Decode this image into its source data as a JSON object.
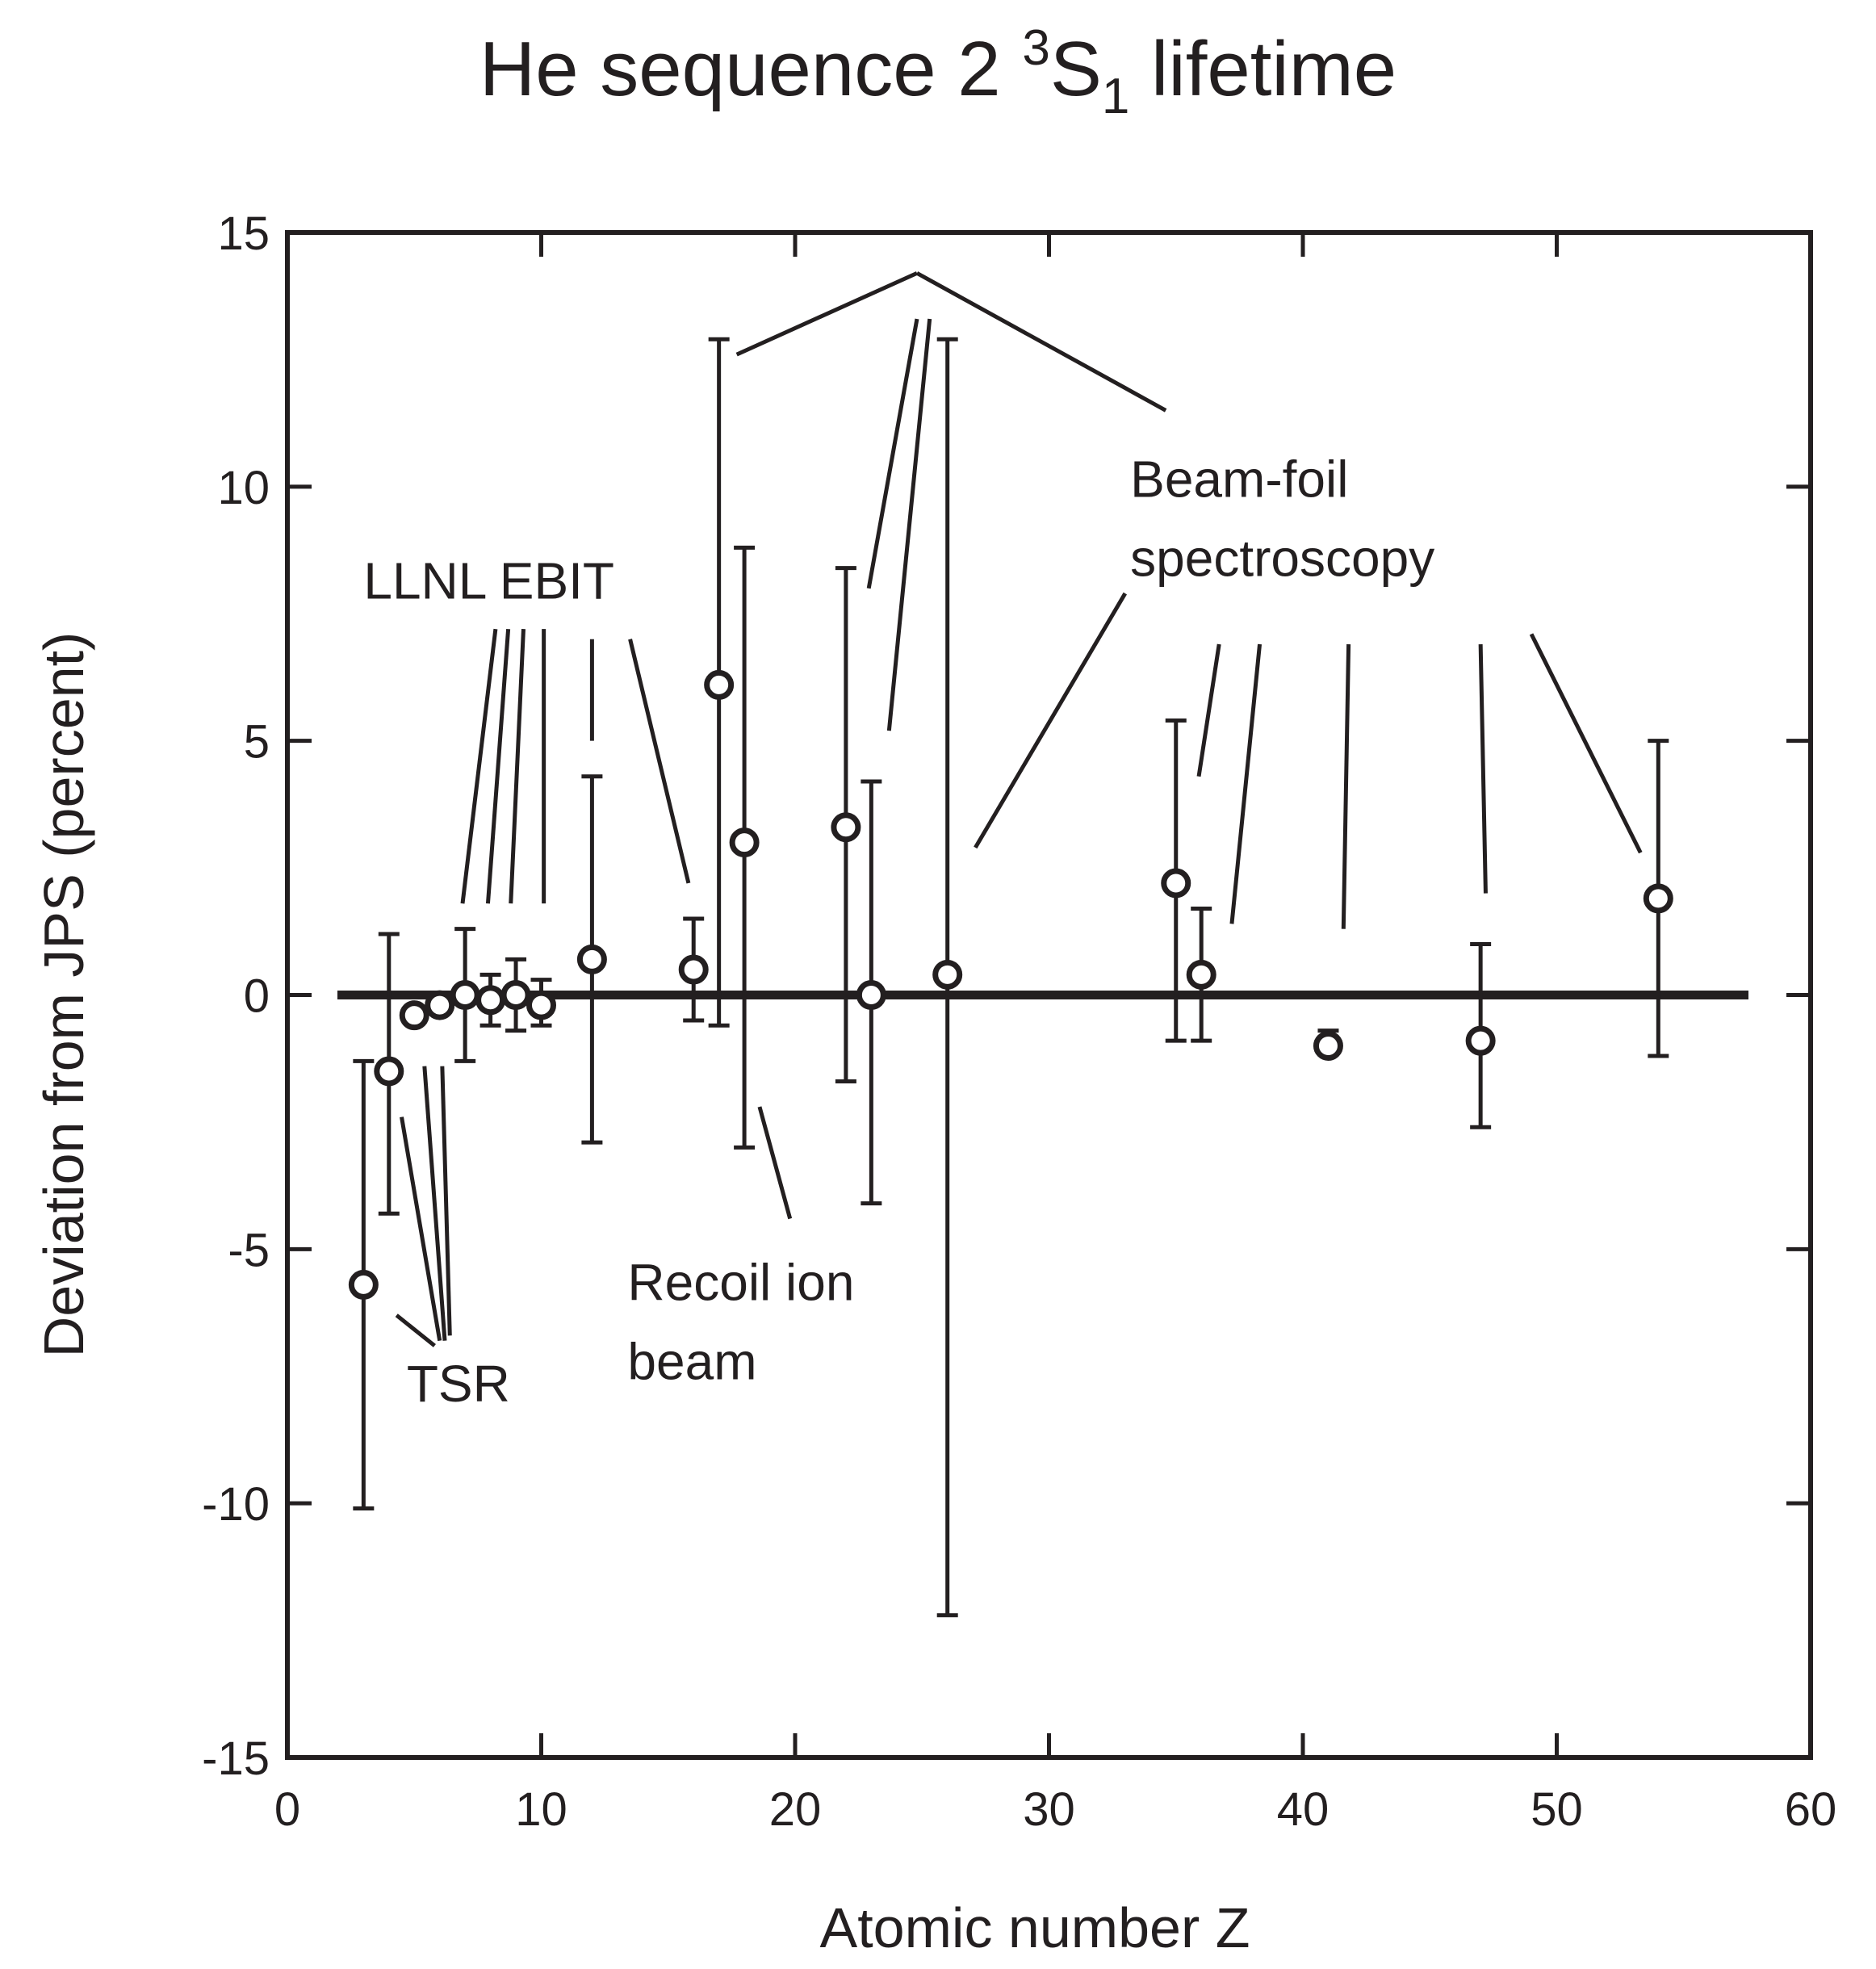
{
  "chart_data": {
    "type": "scatter",
    "title": {
      "prefix": "He sequence 2 ",
      "superscript": "3",
      "symbol": "S",
      "subscript": "1",
      "suffix": " lifetime"
    },
    "xlabel": "Atomic number Z",
    "ylabel": "Deviation from JPS (percent)",
    "xlim": [
      0,
      60
    ],
    "ylim": [
      -15,
      15
    ],
    "xticks": [
      0,
      10,
      20,
      30,
      40,
      50,
      60
    ],
    "yticks": [
      -15,
      -10,
      -5,
      0,
      5,
      10,
      15
    ],
    "reference_line_y": 0,
    "series": [
      {
        "name": "measurements",
        "marker": "open-circle",
        "points": [
          {
            "z": 3,
            "value": -5.7,
            "err_low": -10.1,
            "err_high": -1.3
          },
          {
            "z": 4,
            "value": -1.5,
            "err_low": -4.3,
            "err_high": 1.2
          },
          {
            "z": 5,
            "value": -0.4
          },
          {
            "z": 6,
            "value": -0.2
          },
          {
            "z": 7,
            "value": 0.0,
            "err_low": -1.3,
            "err_high": 1.3
          },
          {
            "z": 8,
            "value": -0.1,
            "err_low": -0.6,
            "err_high": 0.4
          },
          {
            "z": 9,
            "value": 0.0,
            "err_low": -0.7,
            "err_high": 0.7
          },
          {
            "z": 10,
            "value": -0.2,
            "err_low": -0.6,
            "err_high": 0.3
          },
          {
            "z": 12,
            "value": 0.7,
            "err_low": -2.9,
            "err_high": 4.3
          },
          {
            "z": 16,
            "value": 0.5,
            "err_low": -0.5,
            "err_high": 1.5
          },
          {
            "z": 17,
            "value": 6.1,
            "err_low": -0.6,
            "err_high": 12.9
          },
          {
            "z": 18,
            "value": 3.0,
            "err_low": -3.0,
            "err_high": 8.8
          },
          {
            "z": 22,
            "value": 3.3,
            "err_low": -1.7,
            "err_high": 8.4
          },
          {
            "z": 23,
            "value": 0.0,
            "err_low": -4.1,
            "err_high": 4.2
          },
          {
            "z": 26,
            "value": 0.4,
            "err_low": -12.2,
            "err_high": 12.9
          },
          {
            "z": 35,
            "value": 2.2,
            "err_low": -0.9,
            "err_high": 5.4
          },
          {
            "z": 36,
            "value": 0.4,
            "err_low": -0.9,
            "err_high": 1.7
          },
          {
            "z": 41,
            "value": -1.0,
            "err_low": -1.1,
            "err_high": -0.7
          },
          {
            "z": 47,
            "value": -0.9,
            "err_low": -2.6,
            "err_high": 1.0
          },
          {
            "z": 54,
            "value": 1.9,
            "err_low": -1.2,
            "err_high": 5.0
          }
        ]
      }
    ],
    "annotations": [
      {
        "lines": [
          "LLNL EBIT"
        ],
        "anchor": [
          3.0,
          7.8
        ],
        "leaders": [
          [
            [
              8.2,
              7.2
            ],
            [
              6.9,
              1.8
            ]
          ],
          [
            [
              8.7,
              7.2
            ],
            [
              7.9,
              1.8
            ]
          ],
          [
            [
              9.3,
              7.2
            ],
            [
              8.8,
              1.8
            ]
          ],
          [
            [
              10.1,
              7.2
            ],
            [
              10.1,
              1.8
            ]
          ],
          [
            [
              12.0,
              7.0
            ],
            [
              12.0,
              5.0
            ]
          ],
          [
            [
              13.5,
              7.0
            ],
            [
              15.8,
              2.2
            ]
          ]
        ]
      },
      {
        "lines": [
          "Recoil ion",
          "beam"
        ],
        "anchor": [
          13.4,
          -6.0
        ],
        "leaders": [
          [
            [
              19.8,
              -4.4
            ],
            [
              18.6,
              -2.2
            ]
          ]
        ]
      },
      {
        "lines": [
          "TSR"
        ],
        "anchor": [
          4.7,
          -8.0
        ],
        "leaders": [
          [
            [
              5.8,
              -6.9
            ],
            [
              4.3,
              -6.3
            ]
          ],
          [
            [
              6.0,
              -6.8
            ],
            [
              4.5,
              -2.4
            ]
          ],
          [
            [
              6.2,
              -6.8
            ],
            [
              5.4,
              -1.4
            ]
          ],
          [
            [
              6.4,
              -6.7
            ],
            [
              6.1,
              -1.4
            ]
          ]
        ]
      },
      {
        "lines": [
          "Beam-foil",
          "spectroscopy"
        ],
        "anchor": [
          33.2,
          9.8
        ],
        "leaders": [
          [
            [
              24.8,
              14.2
            ],
            [
              17.7,
              12.6
            ]
          ],
          [
            [
              24.8,
              14.2
            ],
            [
              34.6,
              11.5
            ]
          ],
          [
            [
              24.8,
              13.3
            ],
            [
              22.9,
              8.0
            ]
          ],
          [
            [
              25.3,
              13.3
            ],
            [
              23.7,
              5.2
            ]
          ],
          [
            [
              33.0,
              7.9
            ],
            [
              27.1,
              2.9
            ]
          ],
          [
            [
              36.7,
              6.9
            ],
            [
              35.9,
              4.3
            ]
          ],
          [
            [
              38.3,
              6.9
            ],
            [
              37.2,
              1.4
            ]
          ],
          [
            [
              41.8,
              6.9
            ],
            [
              41.6,
              1.3
            ]
          ],
          [
            [
              47.0,
              6.9
            ],
            [
              47.2,
              2.0
            ]
          ],
          [
            [
              49.0,
              7.1
            ],
            [
              53.3,
              2.8
            ]
          ]
        ]
      }
    ]
  }
}
